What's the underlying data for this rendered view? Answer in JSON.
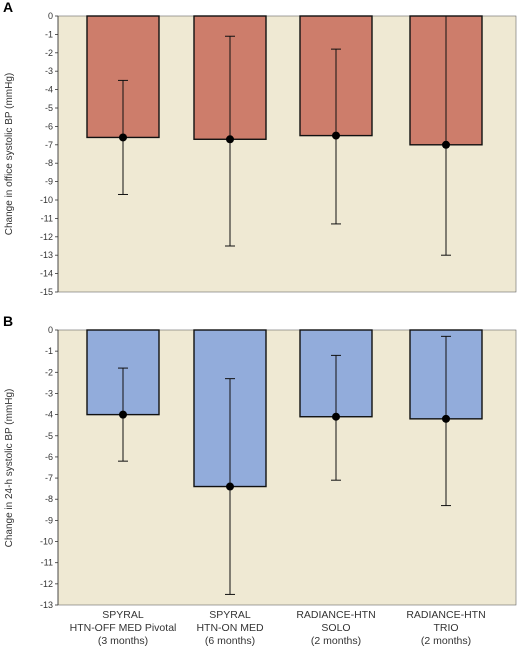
{
  "colors": {
    "plot_bg": "#efe9d3",
    "bar_a": "#cd7d6b",
    "bar_b": "#92acdb",
    "stroke": "#111111"
  },
  "categories": [
    [
      "SPYRAL",
      "HTN-OFF MED Pivotal",
      "(3 months)"
    ],
    [
      "SPYRAL",
      "HTN-ON MED",
      "(6 months)"
    ],
    [
      "RADIANCE-HTN",
      "SOLO",
      "(2 months)"
    ],
    [
      "RADIANCE-HTN",
      "TRIO",
      "(2 months)"
    ]
  ],
  "chart_data": [
    {
      "type": "bar",
      "panel_label": "A",
      "ylabel": "Change in office systolic BP (mmHg)",
      "ylim": [
        -15,
        0
      ],
      "yticks": [
        0,
        -1,
        -2,
        -3,
        -4,
        -5,
        -6,
        -7,
        -8,
        -9,
        -10,
        -11,
        -12,
        -13,
        -14,
        -15
      ],
      "values": [
        -6.6,
        -6.7,
        -6.5,
        -7.0
      ],
      "error_high": [
        -3.5,
        -1.1,
        -1.8,
        0.0
      ],
      "error_low": [
        -9.7,
        -12.5,
        -11.3,
        -13.0
      ],
      "grid": false
    },
    {
      "type": "bar",
      "panel_label": "B",
      "ylabel": "Change in 24-h systolic BP (mmHg)",
      "ylim": [
        -13,
        0
      ],
      "yticks": [
        0,
        -1,
        -2,
        -3,
        -4,
        -5,
        -6,
        -7,
        -8,
        -9,
        -10,
        -11,
        -12,
        -13
      ],
      "values": [
        -4.0,
        -7.4,
        -4.1,
        -4.2
      ],
      "error_high": [
        -1.8,
        -2.3,
        -1.2,
        -0.3
      ],
      "error_low": [
        -6.2,
        -12.5,
        -7.1,
        -8.3
      ],
      "grid": false
    }
  ]
}
